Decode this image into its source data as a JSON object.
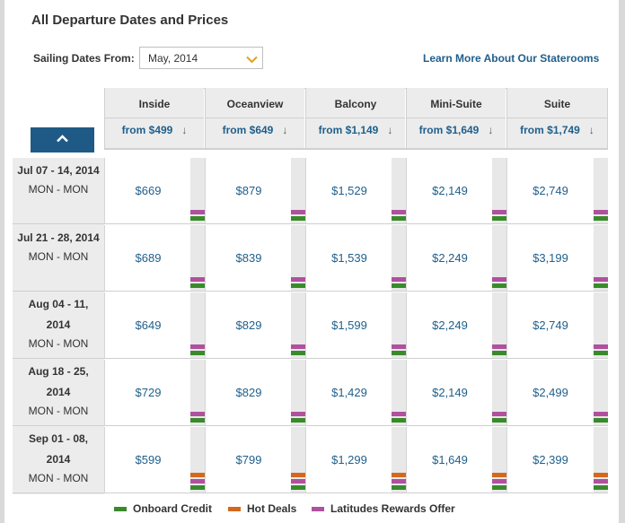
{
  "title": "All Departure Dates and Prices",
  "sailing": {
    "label": "Sailing Dates From:",
    "selected_month": "May, 2014"
  },
  "learn_more": "Learn More About Our Staterooms",
  "columns": [
    {
      "name": "Inside",
      "from": "from $499"
    },
    {
      "name": "Oceanview",
      "from": "from $649"
    },
    {
      "name": "Balcony",
      "from": "from $1,149"
    },
    {
      "name": "Mini-Suite",
      "from": "from $1,649"
    },
    {
      "name": "Suite",
      "from": "from $1,749"
    }
  ],
  "sort_glyph": "↓",
  "rows": [
    {
      "date": "Jul 07 - 14, 2014",
      "days": "MON - MON",
      "prices": [
        "$669",
        "$879",
        "$1,529",
        "$2,149",
        "$2,749"
      ]
    },
    {
      "date": "Jul 21 - 28, 2014",
      "days": "MON - MON",
      "prices": [
        "$689",
        "$839",
        "$1,539",
        "$2,249",
        "$3,199"
      ]
    },
    {
      "date_line1": "Aug 04 - 11,",
      "date_line2": "2014",
      "days": "MON - MON",
      "prices": [
        "$649",
        "$829",
        "$1,599",
        "$2,249",
        "$2,749"
      ]
    },
    {
      "date_line1": "Aug 18 - 25,",
      "date_line2": "2014",
      "days": "MON - MON",
      "prices": [
        "$729",
        "$829",
        "$1,429",
        "$2,149",
        "$2,499"
      ]
    },
    {
      "date_line1": "Sep 01 - 08,",
      "date_line2": "2014",
      "days": "MON - MON",
      "prices": [
        "$599",
        "$799",
        "$1,299",
        "$1,649",
        "$2,399"
      ]
    }
  ],
  "legend": {
    "onboard_credit": "Onboard Credit",
    "hot_deals": "Hot Deals",
    "latitudes": "Latitudes Rewards Offer"
  },
  "colors": {
    "accent_blue": "#1f5f8b",
    "button_blue": "#1f5a86",
    "onboard_credit": "#3a8a2c",
    "hot_deals": "#d2691e",
    "latitudes": "#b0509e"
  }
}
